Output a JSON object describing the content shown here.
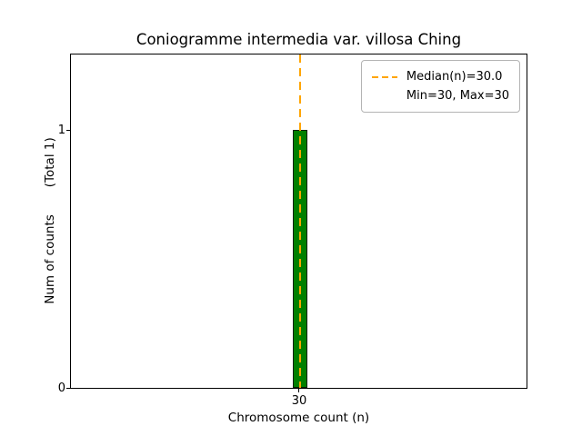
{
  "chart_data": {
    "type": "bar",
    "title": "Coniogramme intermedia var. villosa Ching",
    "xlabel": "Chromosome count (n)",
    "ylabel": "Num of counts",
    "ylabel_note": "(Total 1)",
    "categories": [
      30
    ],
    "values": [
      1
    ],
    "ylim": [
      0,
      1.3
    ],
    "yticks": [
      0,
      1
    ],
    "xticks": [
      30
    ],
    "median": 30.0,
    "min": 30,
    "max": 30,
    "total_counts": 1,
    "legend": {
      "position": "upper right",
      "entries": [
        "Median(n)=30.0",
        "Min=30, Max=30"
      ]
    },
    "colors": {
      "bar_fill": "#008000",
      "bar_edge": "#002000",
      "median_line": "#ffa500",
      "axis": "#000000"
    }
  }
}
